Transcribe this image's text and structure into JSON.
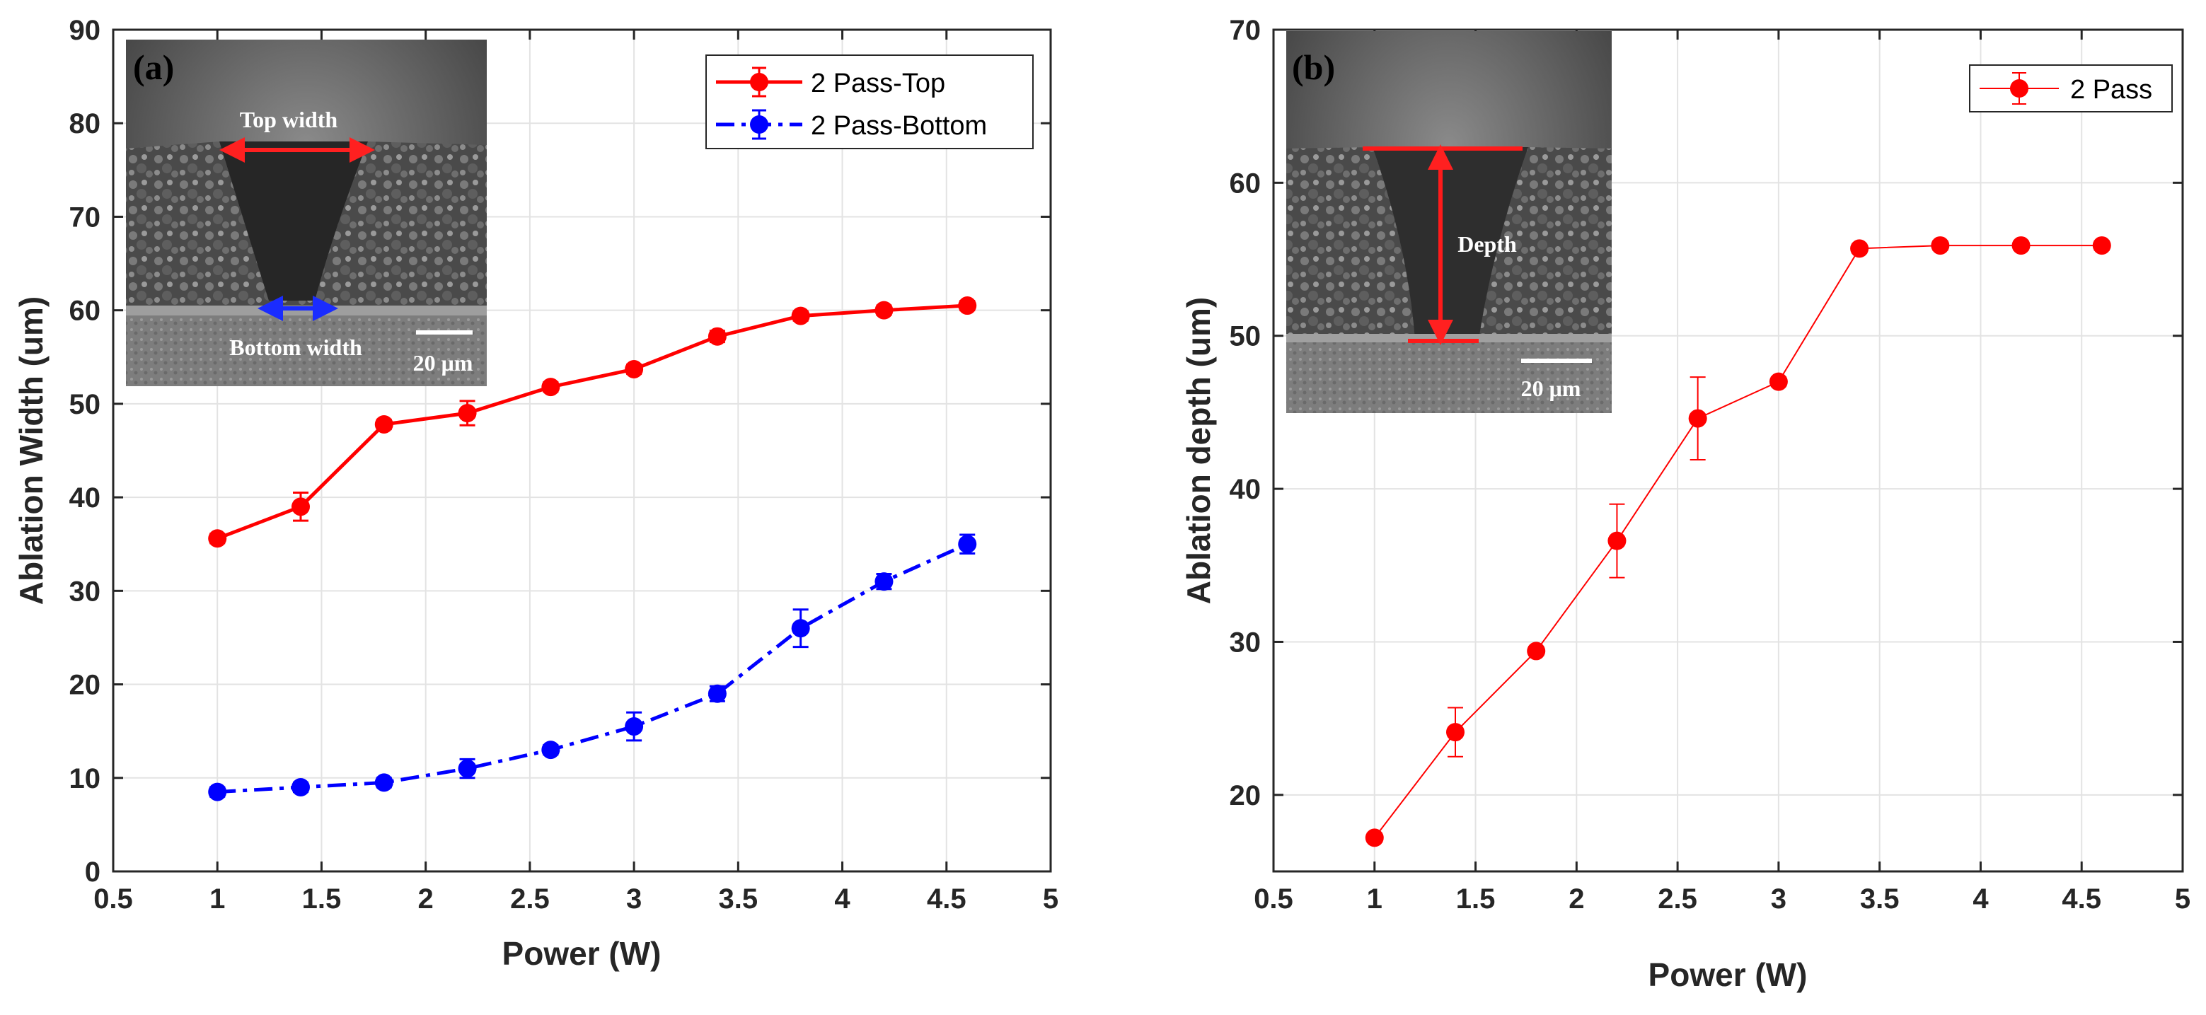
{
  "chart_data": [
    {
      "type": "line",
      "panel_label": "(a)",
      "title": "",
      "xlabel": "Power (W)",
      "ylabel": "Ablation Width (um)",
      "xlim": [
        0.5,
        5
      ],
      "ylim": [
        0,
        90
      ],
      "xticks": [
        0.5,
        1,
        1.5,
        2,
        2.5,
        3,
        3.5,
        4,
        4.5,
        5
      ],
      "xtick_labels": [
        "0.5",
        "1",
        "1.5",
        "2",
        "2.5",
        "3",
        "3.5",
        "4",
        "4.5",
        "5"
      ],
      "yticks": [
        0,
        10,
        20,
        30,
        40,
        50,
        60,
        70,
        80,
        90
      ],
      "ytick_labels": [
        "0",
        "10",
        "20",
        "30",
        "40",
        "50",
        "60",
        "70",
        "80",
        "90"
      ],
      "grid": true,
      "legend_position": "top-right",
      "x": [
        1,
        1.4,
        1.8,
        2.2,
        2.6,
        3,
        3.4,
        3.8,
        4.2,
        4.6
      ],
      "series": [
        {
          "name": "2 Pass-Top",
          "color": "#ff0000",
          "line_style": "solid",
          "values": [
            35.6,
            39.0,
            47.8,
            49.0,
            51.8,
            53.7,
            57.2,
            59.4,
            60.0,
            60.5
          ],
          "errors": [
            0.5,
            1.5,
            0.5,
            1.3,
            0.5,
            0.5,
            0.6,
            0.5,
            0.5,
            0.5
          ]
        },
        {
          "name": "2 Pass-Bottom",
          "color": "#0000ff",
          "line_style": "dash-dot",
          "values": [
            8.5,
            9.0,
            9.5,
            11.0,
            13.0,
            15.5,
            19.0,
            26.0,
            31.0,
            35.0
          ],
          "errors": [
            0.5,
            0.5,
            0.5,
            1.0,
            0.5,
            1.5,
            0.8,
            2.0,
            0.8,
            1.0
          ]
        }
      ],
      "inset": {
        "annotations": [
          "Top width",
          "Bottom width",
          "20 μm"
        ]
      }
    },
    {
      "type": "line",
      "panel_label": "(b)",
      "title": "",
      "xlabel": "Power (W)",
      "ylabel": "Ablation depth (um)",
      "xlim": [
        0.5,
        5
      ],
      "ylim": [
        15,
        70
      ],
      "xticks": [
        0.5,
        1,
        1.5,
        2,
        2.5,
        3,
        3.5,
        4,
        4.5,
        5
      ],
      "xtick_labels": [
        "0.5",
        "1",
        "1.5",
        "2",
        "2.5",
        "3",
        "3.5",
        "4",
        "4.5",
        "5"
      ],
      "yticks": [
        20,
        30,
        40,
        50,
        60,
        70
      ],
      "ytick_labels": [
        "20",
        "30",
        "40",
        "50",
        "60",
        "70"
      ],
      "grid": true,
      "legend_position": "top-right",
      "x": [
        1,
        1.4,
        1.8,
        2.2,
        2.6,
        3,
        3.4,
        3.8,
        4.2,
        4.6
      ],
      "series": [
        {
          "name": "2 Pass",
          "color": "#ff0000",
          "line_style": "solid-thin",
          "values": [
            17.2,
            24.1,
            29.4,
            36.6,
            44.6,
            47.0,
            55.7,
            55.9,
            55.9,
            55.9
          ],
          "errors": [
            0.3,
            1.6,
            0.3,
            2.4,
            2.7,
            0.3,
            0.3,
            0.3,
            0.3,
            0.3
          ]
        }
      ],
      "inset": {
        "annotations": [
          "Depth",
          "20 μm"
        ]
      }
    }
  ]
}
